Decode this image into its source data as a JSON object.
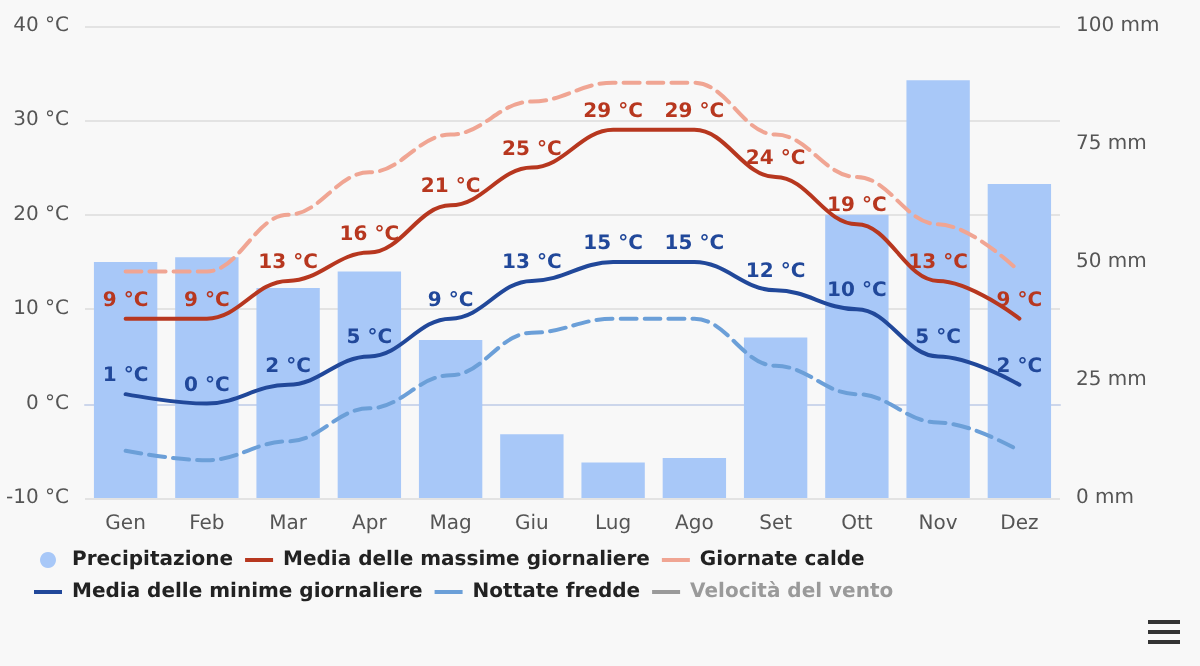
{
  "chart_data": {
    "type": "bar",
    "categories": [
      "Gen",
      "Feb",
      "Mar",
      "Apr",
      "Mag",
      "Giu",
      "Lug",
      "Ago",
      "Set",
      "Ott",
      "Nov",
      "Dez"
    ],
    "series": [
      {
        "name": "Precipitazione",
        "axis": "y2",
        "color": "#a8c8f8",
        "values": [
          50,
          51,
          44.5,
          48,
          33.5,
          13.5,
          7.5,
          8.5,
          34,
          60,
          88.5,
          66.5
        ]
      },
      {
        "name": "Media delle massime giornaliere",
        "type": "line",
        "color": "#b7371f",
        "line_style": "solid",
        "values": [
          9,
          9,
          13,
          16,
          21,
          25,
          29,
          29,
          24,
          19,
          13,
          9
        ],
        "value_labels": [
          "9 °C",
          "9 °C",
          "13 °C",
          "16 °C",
          "21 °C",
          "25 °C",
          "29 °C",
          "29 °C",
          "24 °C",
          "19 °C",
          "13 °C",
          "9 °C"
        ]
      },
      {
        "name": "Giornate calde",
        "type": "line",
        "color": "#f0a593",
        "line_style": "dashed",
        "values": [
          14,
          14,
          20,
          24.5,
          28.5,
          32,
          34,
          34,
          28.5,
          24,
          19,
          14
        ]
      },
      {
        "name": "Media delle minime giornaliere",
        "type": "line",
        "color": "#21489a",
        "line_style": "solid",
        "values": [
          1,
          0,
          2,
          5,
          9,
          13,
          15,
          15,
          12,
          10,
          5,
          2
        ],
        "value_labels": [
          "1 °C",
          "0 °C",
          "2 °C",
          "5 °C",
          "9 °C",
          "13 °C",
          "15 °C",
          "15 °C",
          "12 °C",
          "10 °C",
          "5 °C",
          "2 °C"
        ]
      },
      {
        "name": "Nottate fredde",
        "type": "line",
        "color": "#6b9fd8",
        "line_style": "dashed",
        "values": [
          -5,
          -6,
          -4,
          -0.5,
          3,
          7.5,
          9,
          9,
          4,
          1,
          -2,
          -5
        ]
      },
      {
        "name": "Velocità del vento",
        "type": "line",
        "color": "#9a9a9a",
        "line_style": "solid",
        "values": [
          null,
          null,
          null,
          null,
          null,
          null,
          null,
          null,
          null,
          null,
          null,
          null
        ]
      }
    ],
    "ylim": [
      -10,
      40
    ],
    "yticks": [
      {
        "value": -10,
        "label": "-10 °C"
      },
      {
        "value": 0,
        "label": "0 °C"
      },
      {
        "value": 10,
        "label": "10 °C"
      },
      {
        "value": 20,
        "label": "20 °C"
      },
      {
        "value": 30,
        "label": "30 °C"
      },
      {
        "value": 40,
        "label": "40 °C"
      }
    ],
    "y2lim": [
      0,
      100
    ],
    "y2ticks": [
      {
        "value": 0,
        "label": "0 mm"
      },
      {
        "value": 25,
        "label": "25 mm"
      },
      {
        "value": 50,
        "label": "50 mm"
      },
      {
        "value": 75,
        "label": "75 mm"
      },
      {
        "value": 100,
        "label": "100 mm"
      }
    ],
    "grid": "y",
    "legend": "bottom",
    "marker": "none"
  }
}
